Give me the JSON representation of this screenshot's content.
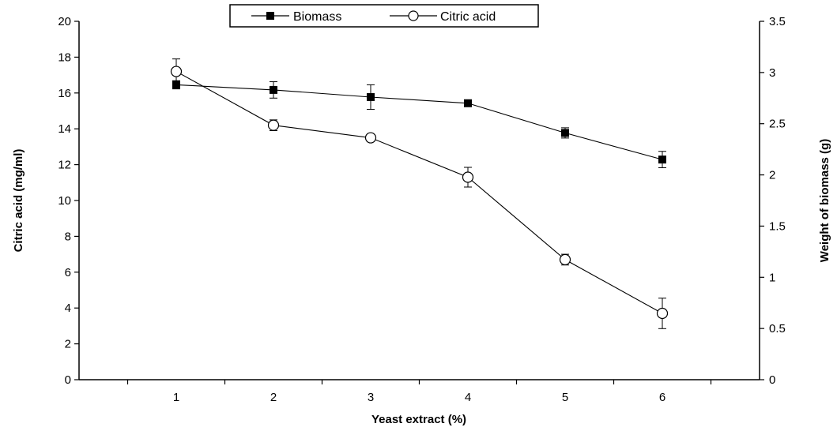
{
  "chart_data": {
    "type": "line",
    "x": [
      1,
      2,
      3,
      4,
      5,
      6
    ],
    "xlabel": "Yeast extract (%)",
    "ylabel_left": "Citric acid (mg/ml)",
    "ylabel_right": "Weight of biomass (g)",
    "xlim": [
      0,
      7
    ],
    "ylim_left": [
      0,
      20
    ],
    "ylim_right": [
      0,
      3.5
    ],
    "xticks": [
      "1",
      "2",
      "3",
      "4",
      "5",
      "6"
    ],
    "yticks_left": [
      "0",
      "2",
      "4",
      "6",
      "8",
      "10",
      "12",
      "14",
      "16",
      "18",
      "20"
    ],
    "yticks_right": [
      "0",
      "0.5",
      "1",
      "1.5",
      "2",
      "2.5",
      "3",
      "3.5"
    ],
    "grid": false,
    "legend_position": "top-center",
    "series": [
      {
        "name": "Biomass",
        "axis": "right",
        "marker": "filled-square",
        "values": [
          2.88,
          2.83,
          2.76,
          2.7,
          2.41,
          2.15
        ],
        "errors": [
          0.04,
          0.08,
          0.12,
          0.03,
          0.05,
          0.08
        ]
      },
      {
        "name": "Citric acid",
        "axis": "left",
        "marker": "open-circle",
        "values": [
          17.2,
          14.2,
          13.5,
          11.3,
          6.7,
          3.7
        ],
        "errors": [
          0.7,
          0.3,
          0.1,
          0.55,
          0.3,
          0.85
        ]
      }
    ],
    "colors": {
      "line": "#000000",
      "background": "#ffffff"
    }
  }
}
